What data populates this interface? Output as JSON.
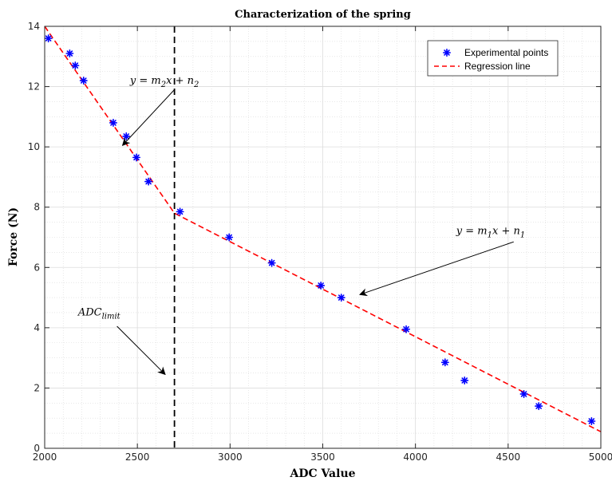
{
  "chart_data": {
    "type": "scatter",
    "title": "Characterization of the spring",
    "xlabel": "ADC Value",
    "ylabel": "Force (N)",
    "xlim": [
      2000,
      5000
    ],
    "ylim": [
      0,
      14
    ],
    "xticks": [
      2000,
      2500,
      3000,
      3500,
      4000,
      4500,
      5000
    ],
    "yticks": [
      0,
      2,
      4,
      6,
      8,
      10,
      12,
      14
    ],
    "grid": true,
    "minor_grid": true,
    "legend_position": "top-right",
    "series": [
      {
        "name": "Experimental points",
        "kind": "scatter",
        "color": "#0000ff",
        "marker": "asterisk",
        "x": [
          2020,
          2135,
          2165,
          2210,
          2370,
          2440,
          2495,
          2560,
          2730,
          2995,
          3225,
          3490,
          3600,
          3950,
          4160,
          4265,
          4585,
          4665,
          4950
        ],
        "y": [
          13.6,
          13.1,
          12.7,
          12.2,
          10.8,
          10.35,
          9.65,
          8.85,
          7.85,
          7.0,
          6.15,
          5.4,
          5.0,
          3.95,
          2.85,
          2.25,
          1.8,
          1.4,
          0.9
        ]
      },
      {
        "name": "Regression line",
        "kind": "line",
        "color": "#ff0000",
        "dash": "dashed",
        "x": [
          2000,
          2700,
          5000
        ],
        "y": [
          14.0,
          7.8,
          0.55
        ]
      }
    ],
    "limit_line": {
      "x": 2700,
      "color": "#000000",
      "dash": "dashed"
    },
    "annotations": [
      {
        "id": "eq2",
        "parts": [
          "y",
          " = ",
          "m",
          "2",
          "x",
          " + ",
          "n",
          "2"
        ],
        "text_x": 2460,
        "text_y": 12.1,
        "arrow_from": [
          2700,
          11.9
        ],
        "arrow_to": [
          2420,
          10.05
        ]
      },
      {
        "id": "eq1",
        "parts": [
          "y",
          " = ",
          "m",
          "1",
          "x",
          " + ",
          "n",
          "1"
        ],
        "text_x": 4220,
        "text_y": 7.1,
        "arrow_from": [
          4530,
          6.85
        ],
        "arrow_to": [
          3700,
          5.1
        ]
      },
      {
        "id": "adc-limit",
        "parts": [
          "ADC",
          "limit"
        ],
        "text_x": 2180,
        "text_y": 4.4,
        "arrow_from": [
          2390,
          4.05
        ],
        "arrow_to": [
          2650,
          2.45
        ]
      }
    ]
  }
}
